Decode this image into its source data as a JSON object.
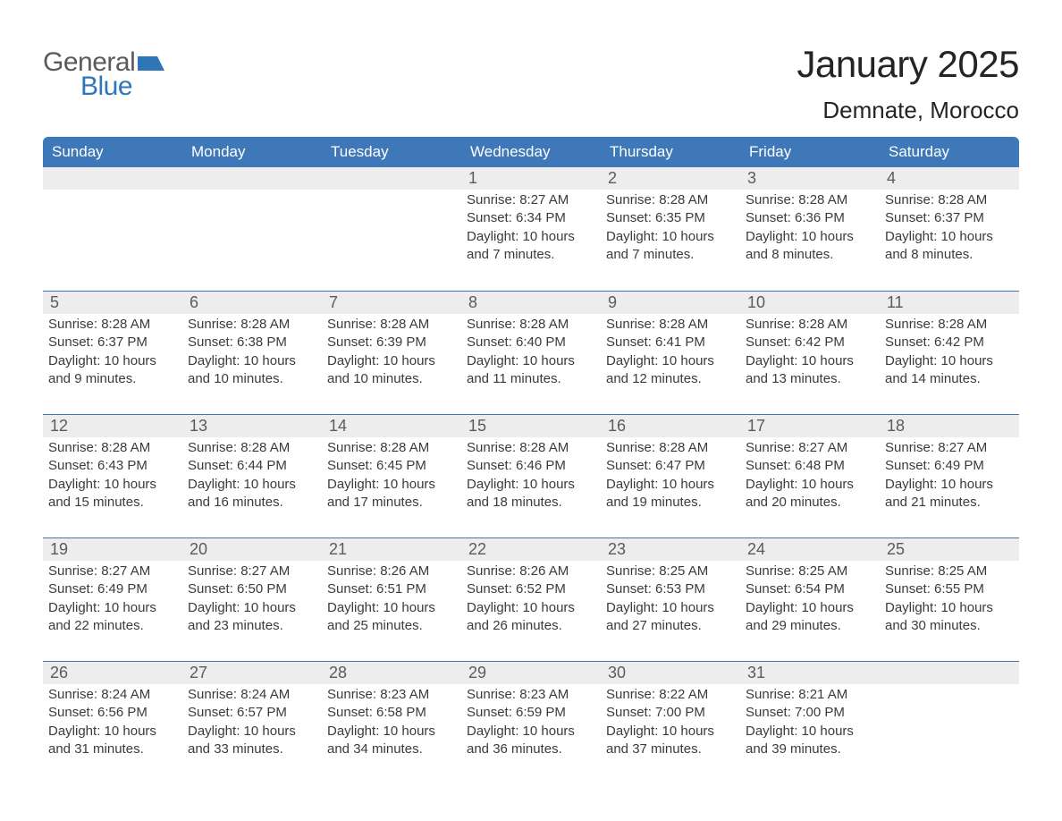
{
  "logo": {
    "word1": "General",
    "word2": "Blue"
  },
  "title": "January 2025",
  "location": "Demnate, Morocco",
  "colors": {
    "header_bg": "#3e78b8",
    "daynum_bg": "#ededed",
    "rule": "#3e78b8",
    "text": "#373737",
    "logo_gray": "#5a5a5a",
    "logo_blue": "#2f76b8"
  },
  "typography": {
    "title_fontsize": 42,
    "location_fontsize": 26,
    "dayheader_fontsize": 17,
    "daynum_fontsize": 18,
    "body_fontsize": 15
  },
  "week_labels": [
    "Sunday",
    "Monday",
    "Tuesday",
    "Wednesday",
    "Thursday",
    "Friday",
    "Saturday"
  ],
  "grid": {
    "type": "calendar",
    "rows": 5,
    "cols": 7
  },
  "weeks": [
    [
      {
        "day": "",
        "sunrise": "",
        "sunset": "",
        "daylight": ""
      },
      {
        "day": "",
        "sunrise": "",
        "sunset": "",
        "daylight": ""
      },
      {
        "day": "",
        "sunrise": "",
        "sunset": "",
        "daylight": ""
      },
      {
        "day": "1",
        "sunrise": "Sunrise: 8:27 AM",
        "sunset": "Sunset: 6:34 PM",
        "daylight": "Daylight: 10 hours and 7 minutes."
      },
      {
        "day": "2",
        "sunrise": "Sunrise: 8:28 AM",
        "sunset": "Sunset: 6:35 PM",
        "daylight": "Daylight: 10 hours and 7 minutes."
      },
      {
        "day": "3",
        "sunrise": "Sunrise: 8:28 AM",
        "sunset": "Sunset: 6:36 PM",
        "daylight": "Daylight: 10 hours and 8 minutes."
      },
      {
        "day": "4",
        "sunrise": "Sunrise: 8:28 AM",
        "sunset": "Sunset: 6:37 PM",
        "daylight": "Daylight: 10 hours and 8 minutes."
      }
    ],
    [
      {
        "day": "5",
        "sunrise": "Sunrise: 8:28 AM",
        "sunset": "Sunset: 6:37 PM",
        "daylight": "Daylight: 10 hours and 9 minutes."
      },
      {
        "day": "6",
        "sunrise": "Sunrise: 8:28 AM",
        "sunset": "Sunset: 6:38 PM",
        "daylight": "Daylight: 10 hours and 10 minutes."
      },
      {
        "day": "7",
        "sunrise": "Sunrise: 8:28 AM",
        "sunset": "Sunset: 6:39 PM",
        "daylight": "Daylight: 10 hours and 10 minutes."
      },
      {
        "day": "8",
        "sunrise": "Sunrise: 8:28 AM",
        "sunset": "Sunset: 6:40 PM",
        "daylight": "Daylight: 10 hours and 11 minutes."
      },
      {
        "day": "9",
        "sunrise": "Sunrise: 8:28 AM",
        "sunset": "Sunset: 6:41 PM",
        "daylight": "Daylight: 10 hours and 12 minutes."
      },
      {
        "day": "10",
        "sunrise": "Sunrise: 8:28 AM",
        "sunset": "Sunset: 6:42 PM",
        "daylight": "Daylight: 10 hours and 13 minutes."
      },
      {
        "day": "11",
        "sunrise": "Sunrise: 8:28 AM",
        "sunset": "Sunset: 6:42 PM",
        "daylight": "Daylight: 10 hours and 14 minutes."
      }
    ],
    [
      {
        "day": "12",
        "sunrise": "Sunrise: 8:28 AM",
        "sunset": "Sunset: 6:43 PM",
        "daylight": "Daylight: 10 hours and 15 minutes."
      },
      {
        "day": "13",
        "sunrise": "Sunrise: 8:28 AM",
        "sunset": "Sunset: 6:44 PM",
        "daylight": "Daylight: 10 hours and 16 minutes."
      },
      {
        "day": "14",
        "sunrise": "Sunrise: 8:28 AM",
        "sunset": "Sunset: 6:45 PM",
        "daylight": "Daylight: 10 hours and 17 minutes."
      },
      {
        "day": "15",
        "sunrise": "Sunrise: 8:28 AM",
        "sunset": "Sunset: 6:46 PM",
        "daylight": "Daylight: 10 hours and 18 minutes."
      },
      {
        "day": "16",
        "sunrise": "Sunrise: 8:28 AM",
        "sunset": "Sunset: 6:47 PM",
        "daylight": "Daylight: 10 hours and 19 minutes."
      },
      {
        "day": "17",
        "sunrise": "Sunrise: 8:27 AM",
        "sunset": "Sunset: 6:48 PM",
        "daylight": "Daylight: 10 hours and 20 minutes."
      },
      {
        "day": "18",
        "sunrise": "Sunrise: 8:27 AM",
        "sunset": "Sunset: 6:49 PM",
        "daylight": "Daylight: 10 hours and 21 minutes."
      }
    ],
    [
      {
        "day": "19",
        "sunrise": "Sunrise: 8:27 AM",
        "sunset": "Sunset: 6:49 PM",
        "daylight": "Daylight: 10 hours and 22 minutes."
      },
      {
        "day": "20",
        "sunrise": "Sunrise: 8:27 AM",
        "sunset": "Sunset: 6:50 PM",
        "daylight": "Daylight: 10 hours and 23 minutes."
      },
      {
        "day": "21",
        "sunrise": "Sunrise: 8:26 AM",
        "sunset": "Sunset: 6:51 PM",
        "daylight": "Daylight: 10 hours and 25 minutes."
      },
      {
        "day": "22",
        "sunrise": "Sunrise: 8:26 AM",
        "sunset": "Sunset: 6:52 PM",
        "daylight": "Daylight: 10 hours and 26 minutes."
      },
      {
        "day": "23",
        "sunrise": "Sunrise: 8:25 AM",
        "sunset": "Sunset: 6:53 PM",
        "daylight": "Daylight: 10 hours and 27 minutes."
      },
      {
        "day": "24",
        "sunrise": "Sunrise: 8:25 AM",
        "sunset": "Sunset: 6:54 PM",
        "daylight": "Daylight: 10 hours and 29 minutes."
      },
      {
        "day": "25",
        "sunrise": "Sunrise: 8:25 AM",
        "sunset": "Sunset: 6:55 PM",
        "daylight": "Daylight: 10 hours and 30 minutes."
      }
    ],
    [
      {
        "day": "26",
        "sunrise": "Sunrise: 8:24 AM",
        "sunset": "Sunset: 6:56 PM",
        "daylight": "Daylight: 10 hours and 31 minutes."
      },
      {
        "day": "27",
        "sunrise": "Sunrise: 8:24 AM",
        "sunset": "Sunset: 6:57 PM",
        "daylight": "Daylight: 10 hours and 33 minutes."
      },
      {
        "day": "28",
        "sunrise": "Sunrise: 8:23 AM",
        "sunset": "Sunset: 6:58 PM",
        "daylight": "Daylight: 10 hours and 34 minutes."
      },
      {
        "day": "29",
        "sunrise": "Sunrise: 8:23 AM",
        "sunset": "Sunset: 6:59 PM",
        "daylight": "Daylight: 10 hours and 36 minutes."
      },
      {
        "day": "30",
        "sunrise": "Sunrise: 8:22 AM",
        "sunset": "Sunset: 7:00 PM",
        "daylight": "Daylight: 10 hours and 37 minutes."
      },
      {
        "day": "31",
        "sunrise": "Sunrise: 8:21 AM",
        "sunset": "Sunset: 7:00 PM",
        "daylight": "Daylight: 10 hours and 39 minutes."
      },
      {
        "day": "",
        "sunrise": "",
        "sunset": "",
        "daylight": ""
      }
    ]
  ]
}
